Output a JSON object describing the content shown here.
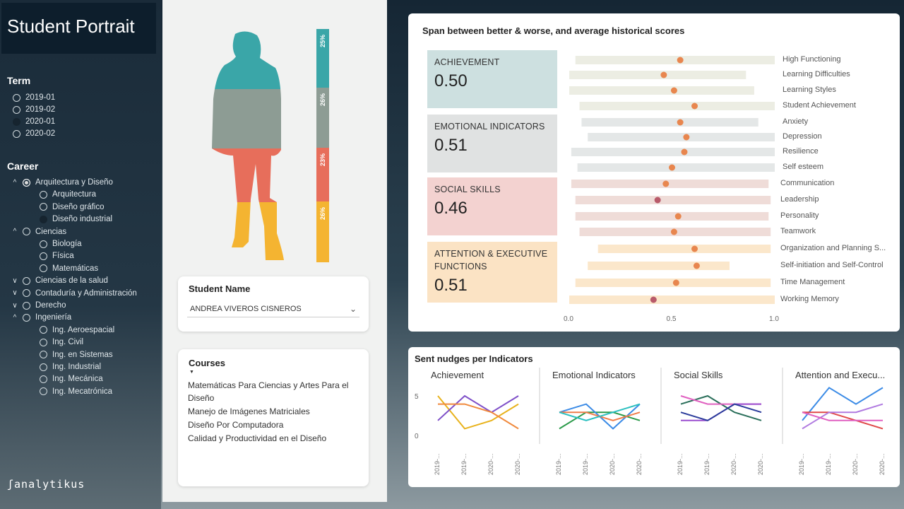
{
  "header": {
    "title": "Student Portrait"
  },
  "term": {
    "label": "Term",
    "options": [
      {
        "label": "2019-01",
        "state": "empty"
      },
      {
        "label": "2019-02",
        "state": "empty"
      },
      {
        "label": "2020-01",
        "state": "dark"
      },
      {
        "label": "2020-02",
        "state": "empty"
      }
    ]
  },
  "career": {
    "label": "Career",
    "groups": [
      {
        "label": "Arquitectura y Diseño",
        "expanded": true,
        "state": "filled",
        "children": [
          {
            "label": "Arquitectura",
            "state": "empty"
          },
          {
            "label": "Diseño gráfico",
            "state": "empty"
          },
          {
            "label": "Diseño industrial",
            "state": "dark"
          }
        ]
      },
      {
        "label": "Ciencias",
        "expanded": true,
        "state": "empty",
        "children": [
          {
            "label": "Biología",
            "state": "empty"
          },
          {
            "label": "Física",
            "state": "empty"
          },
          {
            "label": "Matemáticas",
            "state": "empty"
          }
        ]
      },
      {
        "label": "Ciencias de la salud",
        "expanded": false,
        "state": "empty",
        "children": []
      },
      {
        "label": "Contaduría y Administración",
        "expanded": false,
        "state": "empty",
        "children": []
      },
      {
        "label": "Derecho",
        "expanded": false,
        "state": "empty",
        "children": []
      },
      {
        "label": "Ingeniería",
        "expanded": true,
        "state": "empty",
        "children": [
          {
            "label": "Ing. Aeroespacial",
            "state": "empty"
          },
          {
            "label": "Ing. Civil",
            "state": "empty"
          },
          {
            "label": "Ing. en Sistemas",
            "state": "empty"
          },
          {
            "label": "Ing. Industrial",
            "state": "empty"
          },
          {
            "label": "Ing. Mecánica",
            "state": "empty"
          },
          {
            "label": "Ing. Mecatrónica",
            "state": "empty"
          }
        ]
      }
    ]
  },
  "logo": {
    "text": "analytikus"
  },
  "portrait": {
    "segments": [
      {
        "label": "25%",
        "value": 0.25,
        "color": "#3aa6a8"
      },
      {
        "label": "26%",
        "value": 0.26,
        "color": "#8d9c94"
      },
      {
        "label": "23%",
        "value": 0.23,
        "color": "#e76e5b"
      },
      {
        "label": "26%",
        "value": 0.26,
        "color": "#f4b431"
      }
    ]
  },
  "student": {
    "title": "Student Name",
    "selected": "ANDREA VIVEROS CISNEROS"
  },
  "courses": {
    "title": "Courses",
    "items": [
      "Matemáticas Para Ciencias y Artes Para el Diseño",
      "Manejo de Imágenes Matriciales",
      "Diseño Por Computadora",
      "Calidad y Productividad en el Diseño"
    ]
  },
  "span_chart": {
    "title": "Span between better & worse, and average historical scores",
    "groups": [
      {
        "label": "ACHIEVEMENT",
        "score": "0.50",
        "bg": "#cde0e0",
        "bar": "#ecede3",
        "indicators": [
          {
            "name": "High Functioning",
            "min": 0.03,
            "max": 1.0,
            "avg": 0.54
          },
          {
            "name": "Learning Difficulties",
            "min": 0.0,
            "max": 0.86,
            "avg": 0.46
          },
          {
            "name": "Learning Styles",
            "min": 0.0,
            "max": 0.9,
            "avg": 0.51
          },
          {
            "name": "Student Achievement",
            "min": 0.05,
            "max": 1.0,
            "avg": 0.61
          }
        ]
      },
      {
        "label": "EMOTIONAL INDICATORS",
        "score": "0.51",
        "bg": "#e0e2e2",
        "bar": "#e4e7e7",
        "indicators": [
          {
            "name": "Anxiety",
            "min": 0.06,
            "max": 0.92,
            "avg": 0.54
          },
          {
            "name": "Depression",
            "min": 0.09,
            "max": 1.0,
            "avg": 0.57
          },
          {
            "name": "Resilience",
            "min": 0.01,
            "max": 1.0,
            "avg": 0.56
          },
          {
            "name": "Self esteem",
            "min": 0.04,
            "max": 1.0,
            "avg": 0.5
          }
        ]
      },
      {
        "label": "SOCIAL SKILLS",
        "score": "0.46",
        "bg": "#f3d2d0",
        "bar": "#efdcd8",
        "indicators": [
          {
            "name": "Communication",
            "min": 0.01,
            "max": 0.97,
            "avg": 0.47
          },
          {
            "name": "Leadership",
            "min": 0.03,
            "max": 0.98,
            "avg": 0.43
          },
          {
            "name": "Personality",
            "min": 0.03,
            "max": 0.97,
            "avg": 0.53
          },
          {
            "name": "Teamwork",
            "min": 0.05,
            "max": 0.98,
            "avg": 0.51
          }
        ]
      },
      {
        "label": "ATTENTION & EXECUTIVE FUNCTIONS",
        "score": "0.51",
        "bg": "#fbe3c4",
        "bar": "#fbe7cb",
        "indicators": [
          {
            "name": "Organization and Planning S...",
            "min": 0.14,
            "max": 0.98,
            "avg": 0.61
          },
          {
            "name": "Self-initiation and Self-Control",
            "min": 0.09,
            "max": 0.78,
            "avg": 0.62
          },
          {
            "name": "Time Management",
            "min": 0.03,
            "max": 0.98,
            "avg": 0.52
          },
          {
            "name": "Working Memory",
            "min": 0.0,
            "max": 1.0,
            "avg": 0.41
          }
        ]
      }
    ],
    "xticks": [
      "0.0",
      "0.5",
      "1.0"
    ]
  },
  "nudges": {
    "title": "Sent nudges per Indicators",
    "yticks": [
      "5",
      "0"
    ],
    "xticks": [
      "2019-...",
      "2019-...",
      "2020-...",
      "2020-..."
    ],
    "panels": [
      {
        "title": "Achievement",
        "series": [
          {
            "color": "#e8b21b",
            "values": [
              5,
              1,
              2,
              4
            ]
          },
          {
            "color": "#7e4fc8",
            "values": [
              2,
              5,
              3,
              5
            ]
          },
          {
            "color": "#f0893c",
            "values": [
              4,
              4,
              3,
              1
            ]
          }
        ]
      },
      {
        "title": "Emotional Indicators",
        "series": [
          {
            "color": "#2b9a4a",
            "values": [
              1,
              3,
              3,
              2
            ]
          },
          {
            "color": "#3b8be6",
            "values": [
              3,
              4,
              1,
              4
            ]
          },
          {
            "color": "#ef7d4a",
            "values": [
              3,
              3,
              2,
              3
            ]
          },
          {
            "color": "#2abfbf",
            "values": [
              3,
              2,
              3,
              4
            ]
          }
        ]
      },
      {
        "title": "Social Skills",
        "series": [
          {
            "color": "#2a6f5a",
            "values": [
              4,
              5,
              3,
              2
            ]
          },
          {
            "color": "#e060c0",
            "values": [
              5,
              4,
              4,
              4
            ]
          },
          {
            "color": "#9b4fd0",
            "values": [
              2,
              2,
              4,
              4
            ]
          },
          {
            "color": "#2b3c9b",
            "values": [
              3,
              2,
              4,
              3
            ]
          }
        ]
      },
      {
        "title": "Attention and Execu...",
        "series": [
          {
            "color": "#3b8be6",
            "values": [
              2,
              6,
              4,
              6
            ]
          },
          {
            "color": "#e04848",
            "values": [
              3,
              3,
              2,
              1
            ]
          },
          {
            "color": "#b07ae0",
            "values": [
              1,
              3,
              3,
              4
            ]
          },
          {
            "color": "#e060c0",
            "values": [
              3,
              2,
              2,
              2
            ]
          }
        ]
      }
    ]
  }
}
